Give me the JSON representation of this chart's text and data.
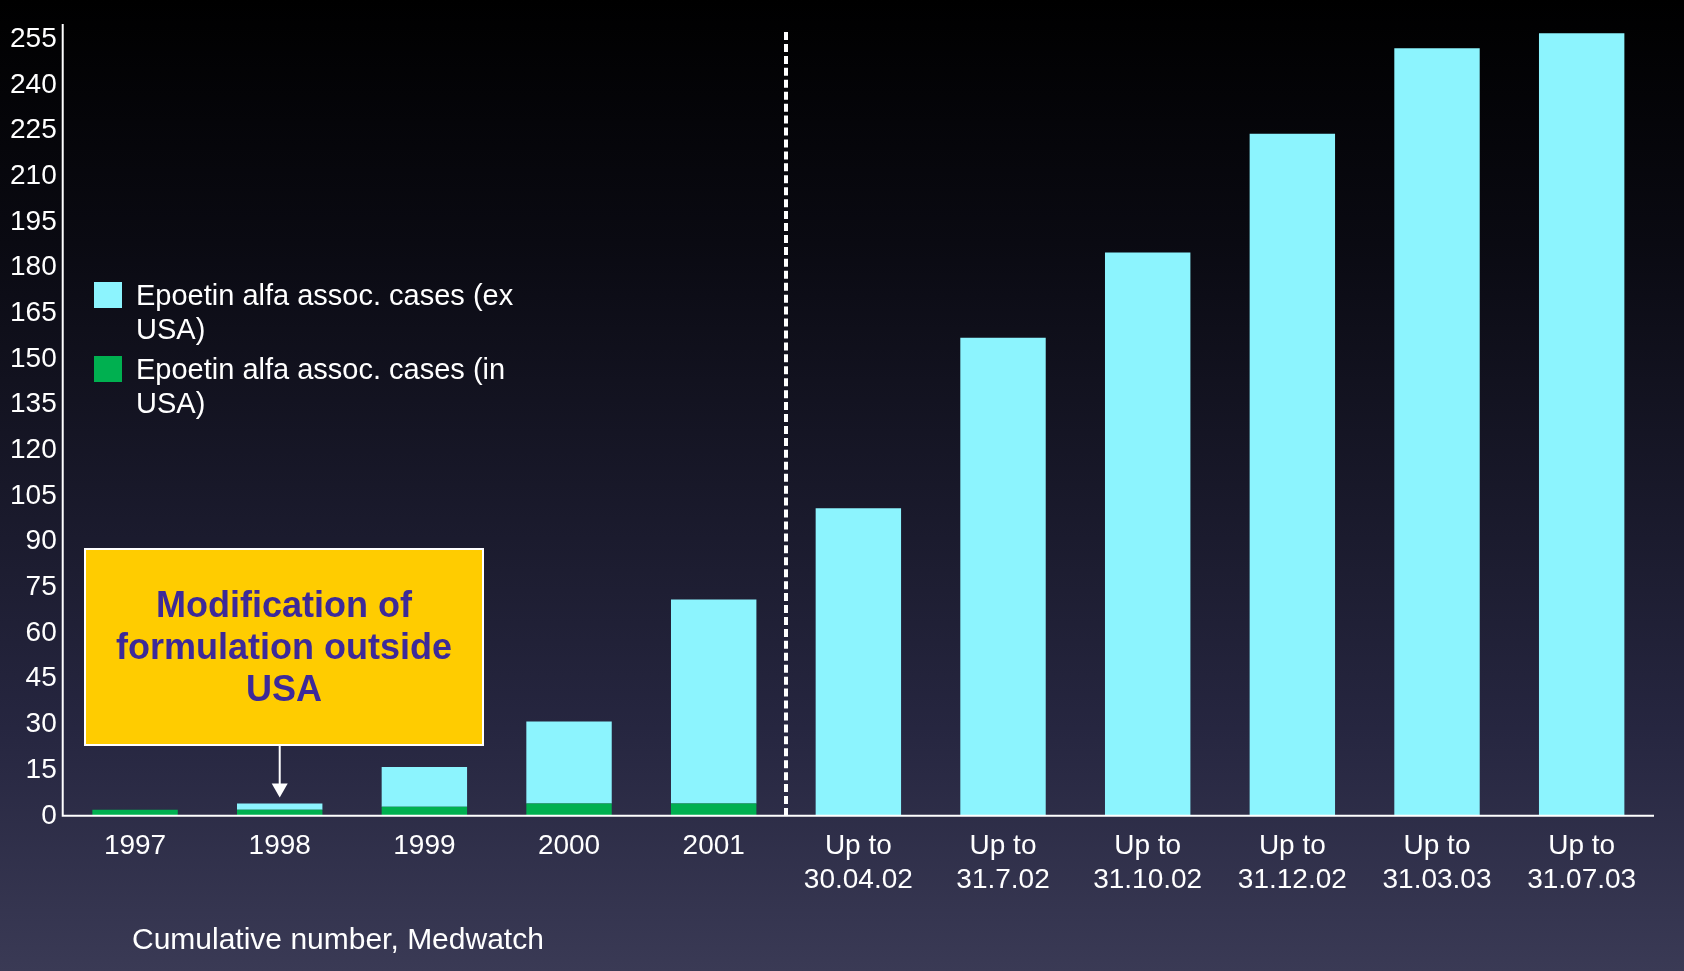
{
  "chart_data": {
    "type": "bar",
    "stacked": true,
    "categories": [
      "1997",
      "1998",
      "1999",
      "2000",
      "2001",
      "Up to 30.04.02",
      "Up to 31.7.02",
      "Up to 31.10.02",
      "Up to 31.12.02",
      "Up to 31.03.03",
      "Up to 31.07.03"
    ],
    "series": [
      {
        "name": "Epoetin alfa assoc. cases (in USA)",
        "color": "#00b050",
        "values": [
          2,
          2,
          3,
          4,
          4,
          null,
          null,
          null,
          null,
          null,
          null
        ]
      },
      {
        "name": "Epoetin alfa assoc. cases (ex USA)",
        "color": "#8cf4fe",
        "values": [
          0,
          2,
          13,
          27,
          67,
          101,
          157,
          185,
          224,
          252,
          257
        ]
      }
    ],
    "ylim": [
      0,
      260
    ],
    "yticks": [
      0,
      15,
      30,
      45,
      60,
      75,
      90,
      105,
      120,
      135,
      150,
      165,
      180,
      195,
      210,
      225,
      240,
      255
    ],
    "grid": false,
    "legend": "left",
    "annotations": [
      {
        "text": "Modification of formulation outside USA",
        "x": "1998",
        "y": 4
      },
      "Cumulative number, Medwatch"
    ]
  }
}
